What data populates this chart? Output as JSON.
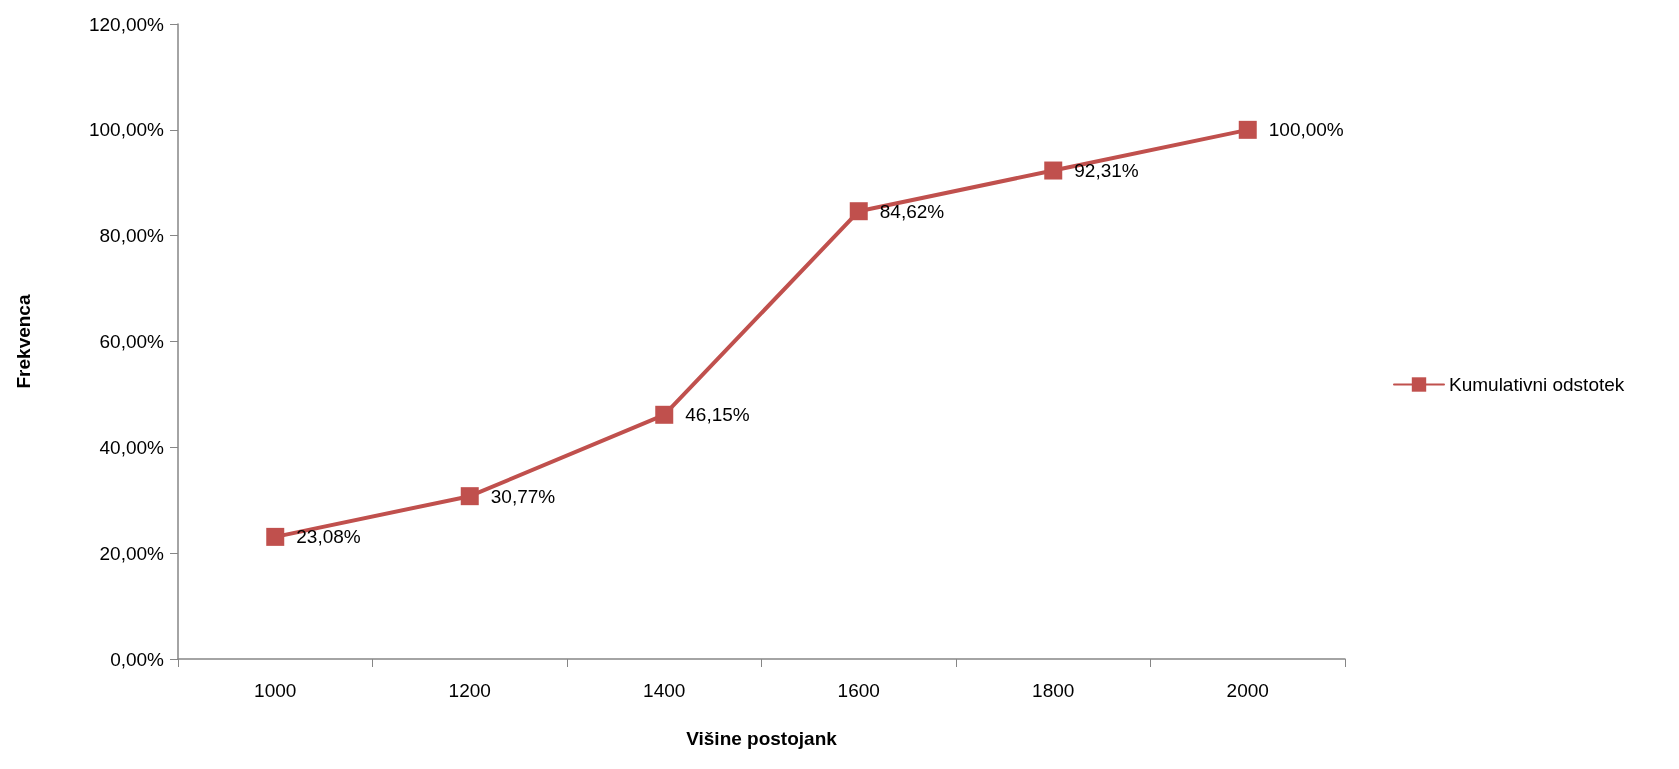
{
  "chart_data": {
    "type": "line",
    "xlabel": "Višine postojank",
    "ylabel": "Frekvenca",
    "categories": [
      "1000",
      "1200",
      "1400",
      "1600",
      "1800",
      "2000"
    ],
    "series": [
      {
        "name": "Kumulativni odstotek",
        "color": "#c0504d",
        "values": [
          23.08,
          30.77,
          46.15,
          84.62,
          92.31,
          100
        ],
        "value_labels": [
          "23,08%",
          "30,77%",
          "46,15%",
          "84,62%",
          "92,31%",
          "100,00%"
        ]
      }
    ],
    "ylim": [
      0,
      120
    ],
    "yticks": [
      {
        "value": 0,
        "label": "0,00%"
      },
      {
        "value": 20,
        "label": "20,00%"
      },
      {
        "value": 40,
        "label": "40,00%"
      },
      {
        "value": 60,
        "label": "60,00%"
      },
      {
        "value": 80,
        "label": "80,00%"
      },
      {
        "value": 100,
        "label": "100,00%"
      },
      {
        "value": 120,
        "label": "120,00%"
      }
    ],
    "grid": false,
    "legend": "right",
    "marker": "square",
    "line_style": "solid"
  }
}
